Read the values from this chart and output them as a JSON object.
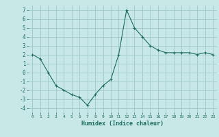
{
  "x": [
    0,
    1,
    2,
    3,
    4,
    5,
    6,
    7,
    8,
    9,
    10,
    11,
    12,
    13,
    14,
    15,
    16,
    17,
    18,
    19,
    20,
    21,
    22,
    23
  ],
  "y": [
    2.0,
    1.5,
    0.0,
    -1.5,
    -2.0,
    -2.5,
    -2.8,
    -3.7,
    -2.5,
    -1.5,
    -0.8,
    2.0,
    7.0,
    5.0,
    4.0,
    3.0,
    2.5,
    2.2,
    2.2,
    2.2,
    2.2,
    2.0,
    2.2,
    2.0
  ],
  "xlabel": "Humidex (Indice chaleur)",
  "ylim": [
    -4.5,
    7.5
  ],
  "xlim": [
    -0.5,
    23.5
  ],
  "yticks": [
    -4,
    -3,
    -2,
    -1,
    0,
    1,
    2,
    3,
    4,
    5,
    6,
    7
  ],
  "xticks": [
    0,
    1,
    2,
    3,
    4,
    5,
    6,
    7,
    8,
    9,
    10,
    11,
    12,
    13,
    14,
    15,
    16,
    17,
    18,
    19,
    20,
    21,
    22,
    23
  ],
  "line_color": "#1a6b5a",
  "marker_color": "#1a6b5a",
  "bg_color": "#c8e8e8",
  "grid_color": "#a0c8c8",
  "xlabel_color": "#1a6b5a",
  "tick_color": "#1a6b5a"
}
